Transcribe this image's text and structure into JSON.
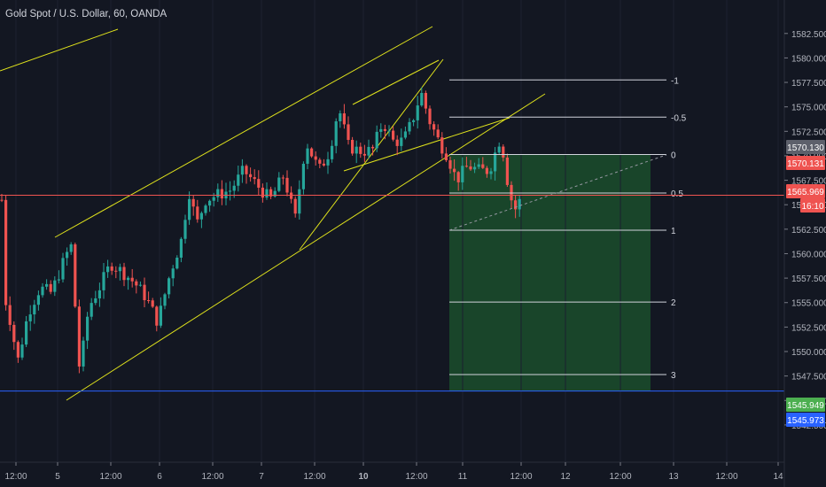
{
  "header": {
    "title": "Gold Spot / U.S. Dollar, 60, OANDA"
  },
  "chart_data": {
    "type": "candlestick",
    "title": "Gold Spot / U.S. Dollar, 60, OANDA",
    "ylim": [
      1540.5,
      1584.2
    ],
    "y_ticks": [
      "1582.500",
      "1580.000",
      "1577.500",
      "1575.000",
      "1572.500",
      "1570.000",
      "1567.500",
      "1565.000",
      "1562.500",
      "1560.000",
      "1557.500",
      "1555.000",
      "1552.500",
      "1550.000",
      "1547.500",
      "1545.000",
      "1542.500"
    ],
    "x_ticks": [
      "12:00",
      "5",
      "12:00",
      "6",
      "12:00",
      "7",
      "12:00",
      "10",
      "12:00",
      "11",
      "12:00",
      "12",
      "12:00",
      "13",
      "12:00",
      "14"
    ],
    "price_labels": [
      {
        "text": "1570.130",
        "color": "#5d606b"
      },
      {
        "text": "1570.131",
        "color": "#ef5350"
      },
      {
        "text": "1565.969",
        "color": "#ef5350"
      },
      {
        "text": "16:10",
        "color": "#ef5350"
      },
      {
        "text": "1545.949",
        "color": "#4caf50"
      },
      {
        "text": "1545.973",
        "color": "#2962ff"
      }
    ],
    "fib_levels": [
      {
        "label": "-1",
        "price": 1577.75
      },
      {
        "label": "-0.5",
        "price": 1573.95
      },
      {
        "label": "0",
        "price": 1570.13
      },
      {
        "label": "0.5",
        "price": 1566.2
      },
      {
        "label": "1",
        "price": 1562.4
      },
      {
        "label": "2",
        "price": 1555.05
      },
      {
        "label": "3",
        "price": 1547.65
      }
    ],
    "horizontal_lines": [
      {
        "name": "current-price-line",
        "price": 1565.97,
        "color": "#ef5350"
      },
      {
        "name": "support-line",
        "price": 1545.96,
        "color": "#2962ff"
      }
    ],
    "colors": {
      "up": "#26a69a",
      "down": "#ef5350",
      "channel": "#e0e31c",
      "target_zone": "#1b4d2b",
      "background": "#131722"
    }
  }
}
